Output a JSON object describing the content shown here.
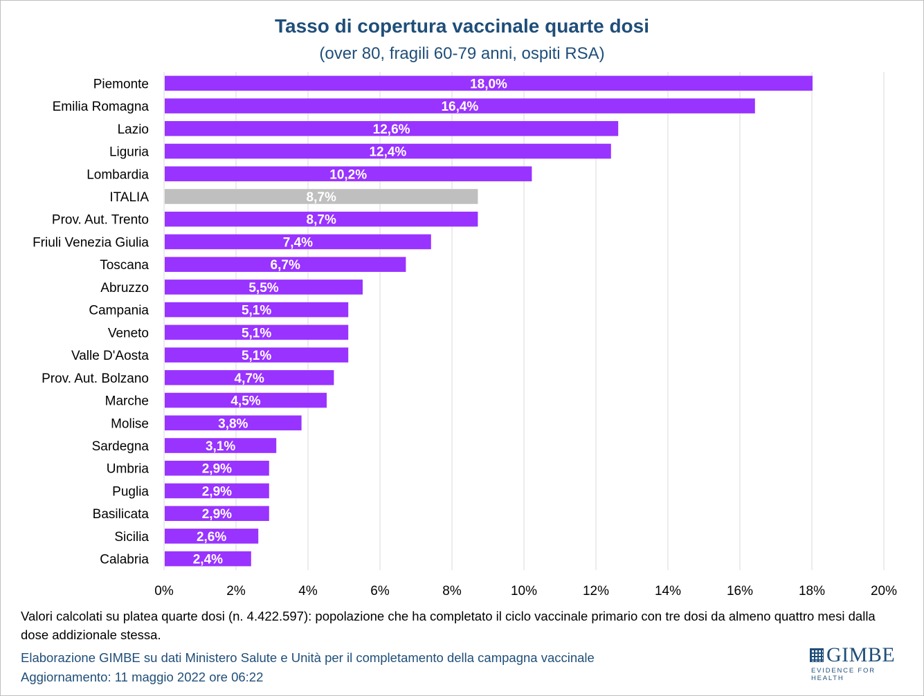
{
  "title": "Tasso di copertura vaccinale quarte dosi",
  "subtitle": "(over 80, fragili 60-79 anni, ospiti RSA)",
  "note": "Valori calcolati su platea quarte dosi (n. 4.422.597): popolazione che ha completato il ciclo vaccinale primario con tre dosi da almeno quattro mesi dalla dose addizionale stessa.",
  "source_line1": "Elaborazione GIMBE su dati Ministero Salute e Unità per il completamento della campagna vaccinale",
  "source_line2": "Aggiornamento: 11 maggio 2022 ore 06:22",
  "logo": {
    "name": "GIMBE",
    "tagline": "EVIDENCE FOR HEALTH"
  },
  "colors": {
    "bar": "#9933ff",
    "highlight": "#bfbfbf",
    "title": "#1f4e79",
    "grid": "#d9d9d9",
    "label": "#ffffff"
  },
  "chart_data": {
    "type": "bar",
    "orientation": "horizontal",
    "categories": [
      "Piemonte",
      "Emilia Romagna",
      "Lazio",
      "Liguria",
      "Lombardia",
      "ITALIA",
      "Prov. Aut. Trento",
      "Friuli Venezia Giulia",
      "Toscana",
      "Abruzzo",
      "Campania",
      "Veneto",
      "Valle D'Aosta",
      "Prov. Aut. Bolzano",
      "Marche",
      "Molise",
      "Sardegna",
      "Umbria",
      "Puglia",
      "Basilicata",
      "Sicilia",
      "Calabria"
    ],
    "values": [
      18.0,
      16.4,
      12.6,
      12.4,
      10.2,
      8.7,
      8.7,
      7.4,
      6.7,
      5.5,
      5.1,
      5.1,
      5.1,
      4.7,
      4.5,
      3.8,
      3.1,
      2.9,
      2.9,
      2.9,
      2.6,
      2.4
    ],
    "value_labels": [
      "18,0%",
      "16,4%",
      "12,6%",
      "12,4%",
      "10,2%",
      "8,7%",
      "8,7%",
      "7,4%",
      "6,7%",
      "5,5%",
      "5,1%",
      "5,1%",
      "5,1%",
      "4,7%",
      "4,5%",
      "3,8%",
      "3,1%",
      "2,9%",
      "2,9%",
      "2,9%",
      "2,6%",
      "2,4%"
    ],
    "highlight_category": "ITALIA",
    "x_ticks": [
      0,
      2,
      4,
      6,
      8,
      10,
      12,
      14,
      16,
      18,
      20
    ],
    "x_tick_labels": [
      "0%",
      "2%",
      "4%",
      "6%",
      "8%",
      "10%",
      "12%",
      "14%",
      "16%",
      "18%",
      "20%"
    ],
    "xlim": [
      0,
      20
    ],
    "grid": "vertical",
    "legend": "none"
  }
}
